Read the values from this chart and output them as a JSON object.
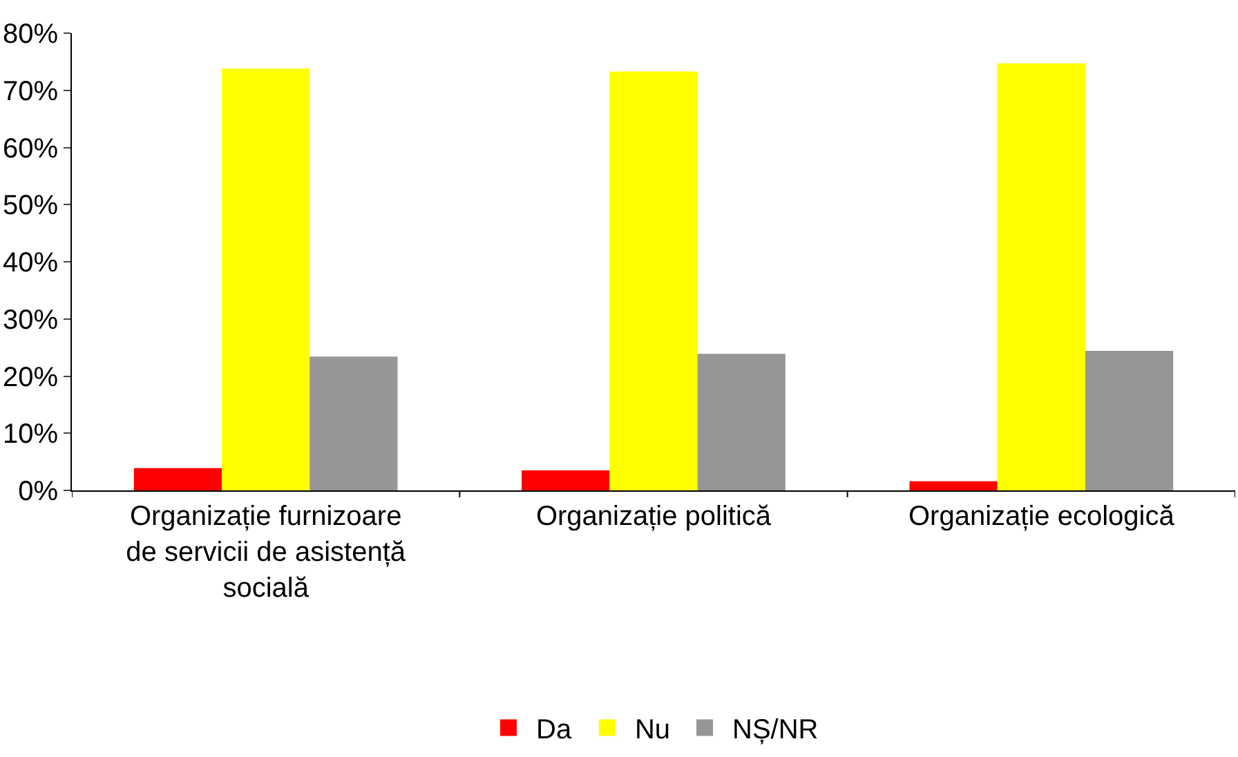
{
  "chart_data": {
    "type": "bar",
    "categories": [
      "Organizație furnizoare de servicii de asistență socială",
      "Organizație politică",
      "Organizație ecologică"
    ],
    "series": [
      {
        "name": "Da",
        "color": "#ff0000",
        "values": [
          3.9,
          3.5,
          1.6
        ]
      },
      {
        "name": "Nu",
        "color": "#ffff00",
        "values": [
          73.8,
          73.3,
          74.7
        ]
      },
      {
        "name": "NȘ/NR",
        "color": "#969696",
        "values": [
          23.4,
          23.9,
          24.4
        ]
      }
    ],
    "ylim": [
      0,
      80
    ],
    "yticks": [
      {
        "value": 0,
        "label": "0%"
      },
      {
        "value": 10,
        "label": "10%"
      },
      {
        "value": 20,
        "label": "20%"
      },
      {
        "value": 30,
        "label": "30%"
      },
      {
        "value": 40,
        "label": "40%"
      },
      {
        "value": 50,
        "label": "50%"
      },
      {
        "value": 60,
        "label": "60%"
      },
      {
        "value": 70,
        "label": "70%"
      },
      {
        "value": 80,
        "label": "80%"
      }
    ],
    "legend": "bottom"
  }
}
